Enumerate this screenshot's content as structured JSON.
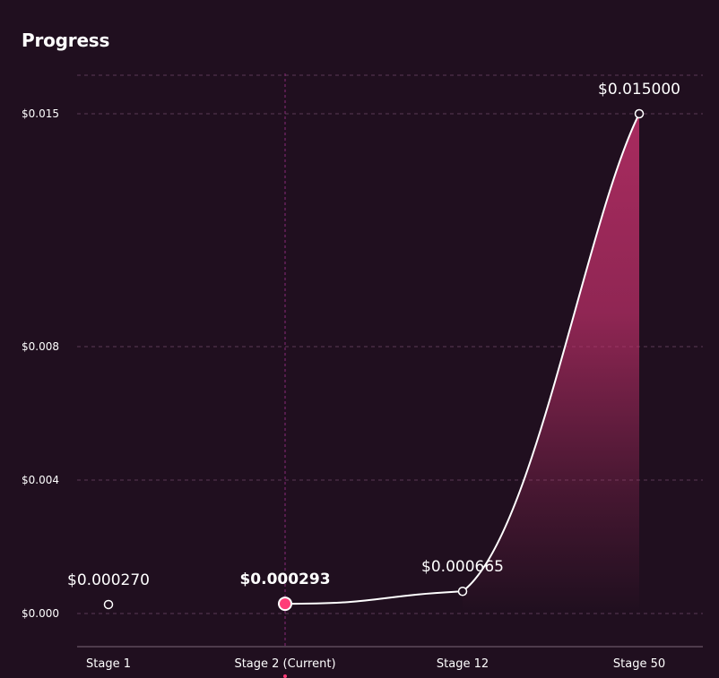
{
  "header": {
    "title": "Progress"
  },
  "chart_data": {
    "type": "line",
    "categories": [
      "Stage 1",
      "Stage 2 (Current)",
      "Stage 12",
      "Stage 50"
    ],
    "series": [
      {
        "values": [
          0.00027,
          0.000293,
          0.000665,
          0.015
        ]
      }
    ],
    "data_labels": [
      "$0.000270",
      "$0.000293",
      "$0.000665",
      "$0.015000"
    ],
    "yticks": [
      {
        "value": 0.015,
        "label": "$0.015"
      },
      {
        "value": 0.008,
        "label": "$0.008"
      },
      {
        "value": 0.004,
        "label": "$0.004"
      },
      {
        "value": 0.0,
        "label": "$0.000"
      }
    ],
    "current_index": 1,
    "grid": true,
    "colors": {
      "line": "#ffffff",
      "fill": "#c0306a",
      "current_point": "#ff3d78",
      "current_guide": "#8a2a78"
    }
  }
}
